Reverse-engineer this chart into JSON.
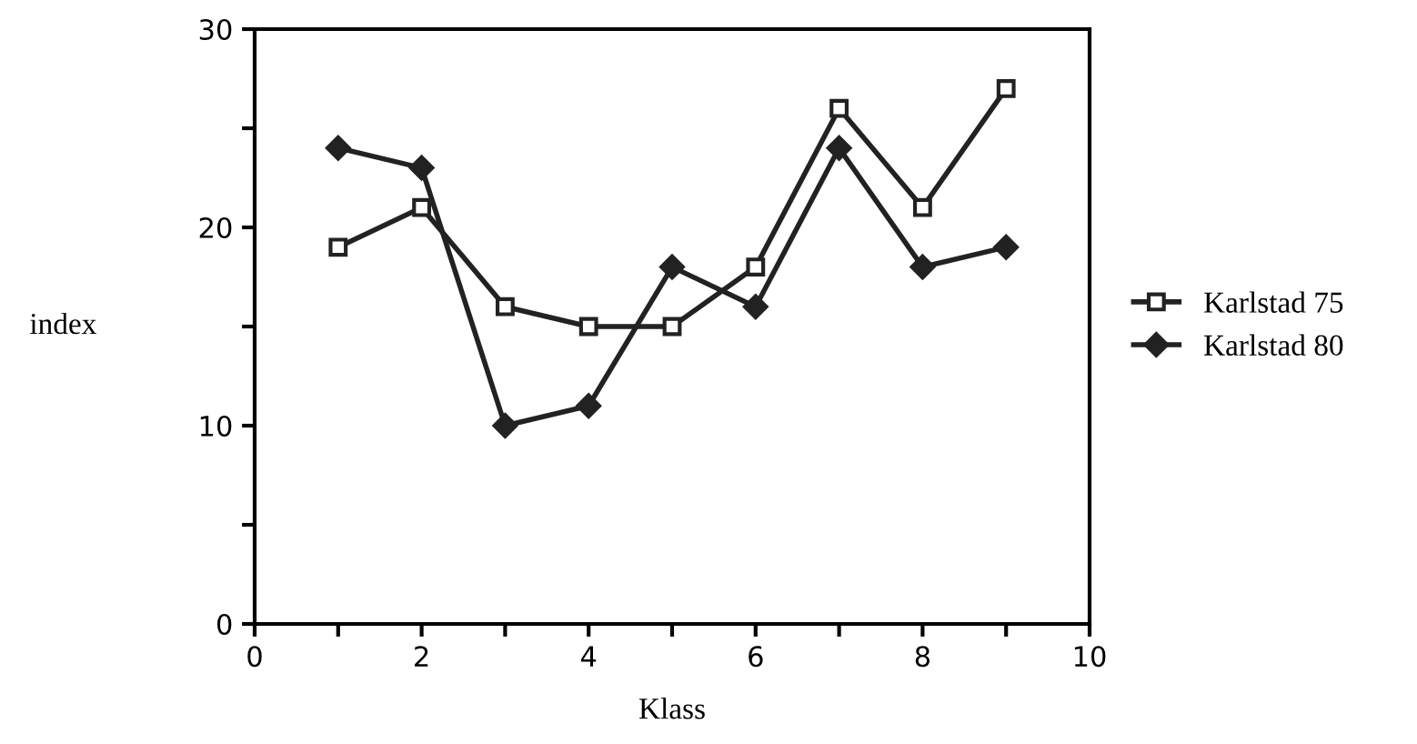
{
  "chart_data": {
    "type": "line",
    "xlabel": "Klass",
    "ylabel": "index",
    "x": [
      1,
      2,
      3,
      4,
      5,
      6,
      7,
      8,
      9
    ],
    "series": [
      {
        "name": "Karlstad 75",
        "color": "#222222",
        "marker": "square",
        "values": [
          19,
          21,
          16,
          15,
          15,
          18,
          26,
          21,
          27
        ]
      },
      {
        "name": "Karlstad 80",
        "color": "#222222",
        "marker": "diamond",
        "values": [
          24,
          23,
          10,
          11,
          18,
          16,
          24,
          18,
          19
        ]
      }
    ],
    "xlim": [
      0,
      10
    ],
    "ylim": [
      0,
      30
    ],
    "xticks": [
      0,
      {
        "value": 1,
        "label": null
      },
      2,
      {
        "value": 3,
        "label": null
      },
      4,
      {
        "value": 5,
        "label": null
      },
      6,
      {
        "value": 7,
        "label": null
      },
      8,
      {
        "value": 9,
        "label": null
      },
      10
    ],
    "yticks": [
      0,
      {
        "value": 5,
        "label": null
      },
      10,
      {
        "value": 15,
        "label": null
      },
      20,
      {
        "value": 25,
        "label": null
      },
      30
    ],
    "legend": "right",
    "grid": false,
    "line_style": "solid"
  }
}
